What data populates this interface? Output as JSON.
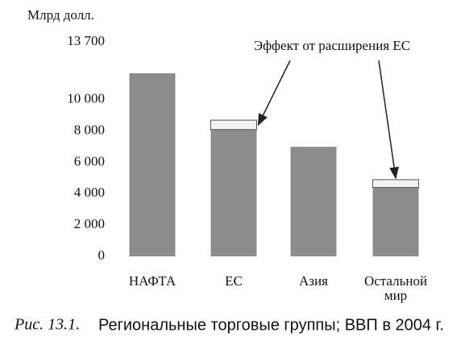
{
  "chart_data": {
    "type": "bar",
    "stacked": true,
    "figure_label": "Рис. 13.1.",
    "title": "Региональные торговые группы; ВВП в 2004 г.",
    "y_label": "Млрд долл.",
    "categories": [
      "НАФТА",
      "ЕС",
      "Азия",
      "Остальной мир"
    ],
    "series": [
      {
        "color": "#8c8c8c",
        "values": [
          11700,
          8100,
          7000,
          4400
        ]
      },
      {
        "name": "Эффект от расширения ЕС",
        "color": "#f2f2f2",
        "values": [
          null,
          600,
          null,
          500
        ]
      }
    ],
    "ylim": [
      0,
      13700
    ],
    "yticks": [
      0,
      {
        "value": 2000,
        "label": "2 000"
      },
      {
        "value": 4000,
        "label": "4 000"
      },
      {
        "value": 6000,
        "label": "6 000"
      },
      {
        "value": 8000,
        "label": "8 000"
      },
      {
        "value": 10000,
        "label": "10 000"
      },
      {
        "value": 13700,
        "label": "13 700"
      }
    ]
  }
}
